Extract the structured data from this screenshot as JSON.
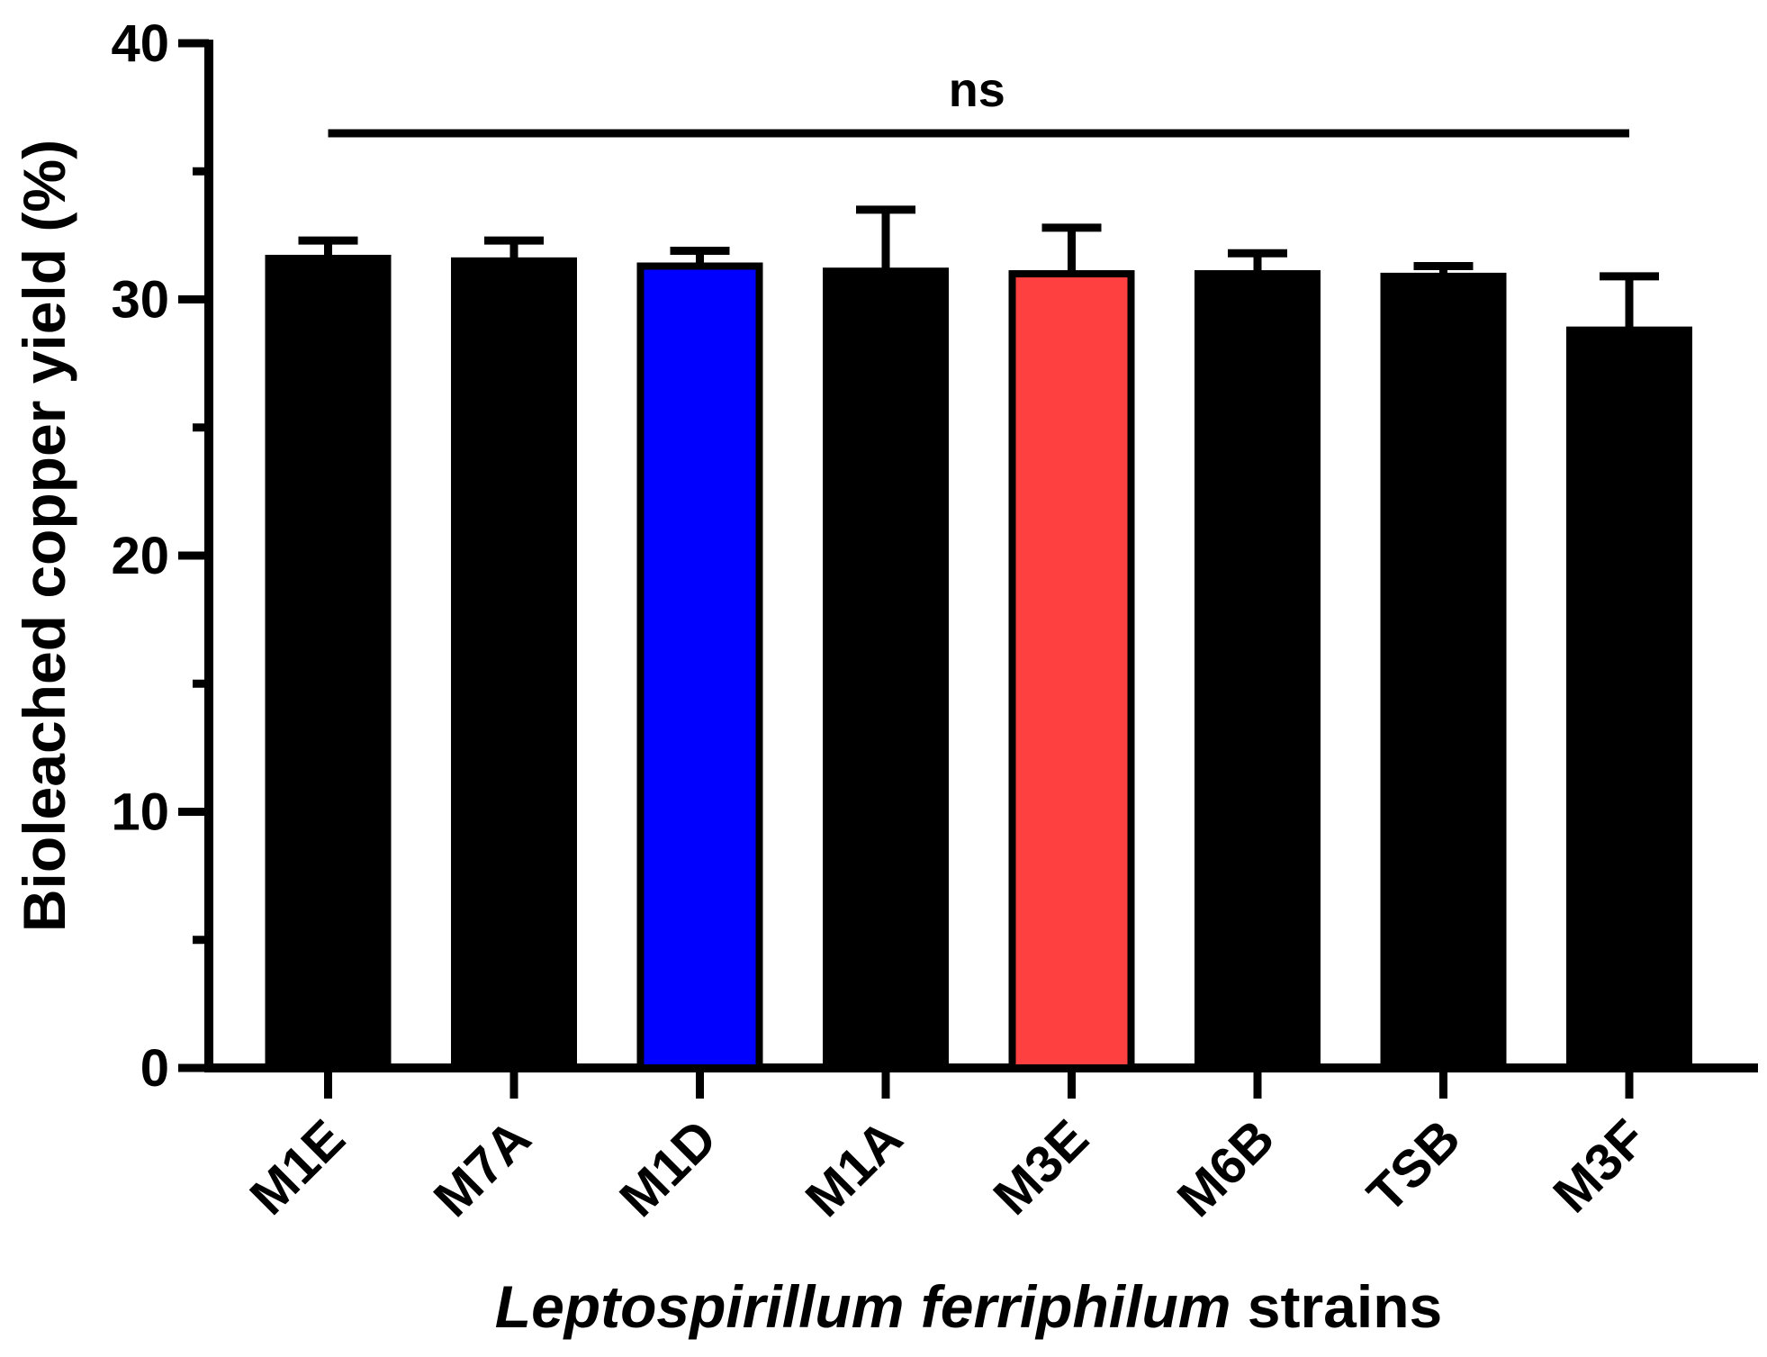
{
  "chart_data": {
    "type": "bar",
    "title": "",
    "ylabel": "Bioleached copper yield (%)",
    "xlabel": {
      "italic_part": "Leptospirillum ferriphilum",
      "plain_part": " strains"
    },
    "categories": [
      "M1E",
      "M7A",
      "M1D",
      "M1A",
      "M3E",
      "M6B",
      "TSB",
      "M3F"
    ],
    "series": [
      {
        "values": [
          31.6,
          31.5,
          31.3,
          31.1,
          31.0,
          31.0,
          30.9,
          28.8
        ],
        "errors": [
          0.7,
          0.8,
          0.6,
          2.4,
          1.8,
          0.8,
          0.4,
          2.1
        ],
        "colors": [
          "#000000",
          "#000000",
          "#0000ff",
          "#000000",
          "#ff4040",
          "#000000",
          "#000000",
          "#000000"
        ]
      }
    ],
    "ylim": [
      0,
      40
    ],
    "yticks": [
      0,
      10,
      20,
      30,
      40
    ],
    "significance": {
      "label": "ns",
      "from": "M1E",
      "to": "M3F"
    },
    "grid": false,
    "legend": "none"
  }
}
